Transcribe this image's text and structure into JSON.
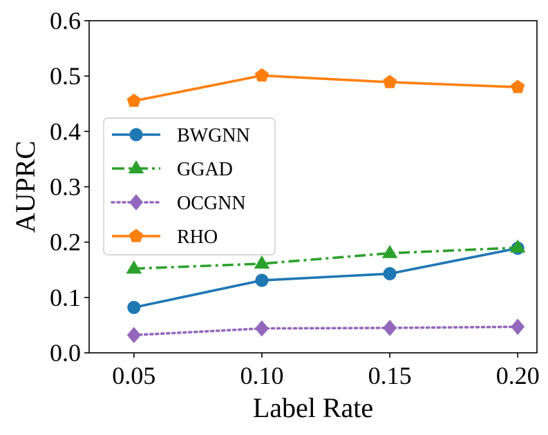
{
  "chart_data": {
    "type": "line",
    "title": "",
    "xlabel": "Label Rate",
    "ylabel": "AUPRC",
    "x": [
      0.05,
      0.1,
      0.15,
      0.2
    ],
    "x_tick_labels": [
      "0.05",
      "0.10",
      "0.15",
      "0.20"
    ],
    "xlim": [
      0.0325,
      0.2075
    ],
    "ylim": [
      0.0,
      0.6
    ],
    "y_ticks": [
      0.0,
      0.1,
      0.2,
      0.3,
      0.4,
      0.5,
      0.6
    ],
    "y_tick_labels": [
      "0.0",
      "0.1",
      "0.2",
      "0.3",
      "0.4",
      "0.5",
      "0.6"
    ],
    "grid": false,
    "legend_position": "center-left",
    "series": [
      {
        "name": "BWGNN",
        "values": [
          0.082,
          0.131,
          0.143,
          0.189
        ],
        "color": "#1f77b4",
        "marker": "circle",
        "linestyle": "solid"
      },
      {
        "name": "GGAD",
        "values": [
          0.152,
          0.161,
          0.18,
          0.19
        ],
        "color": "#2ca02c",
        "marker": "triangle",
        "linestyle": "dashdot"
      },
      {
        "name": "OCGNN",
        "values": [
          0.032,
          0.044,
          0.045,
          0.047
        ],
        "color": "#9467bd",
        "marker": "diamond",
        "linestyle": "dotted"
      },
      {
        "name": "RHO",
        "values": [
          0.455,
          0.501,
          0.489,
          0.48
        ],
        "color": "#ff7f0e",
        "marker": "pentagon",
        "linestyle": "solid"
      }
    ]
  }
}
